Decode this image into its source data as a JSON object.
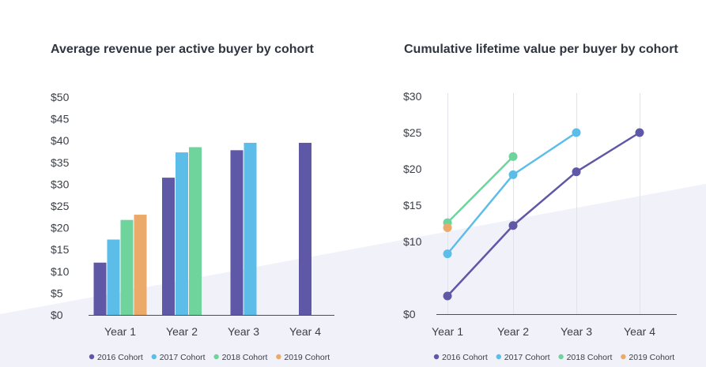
{
  "colors": {
    "2016 Cohort": "#5f58a6",
    "2017 Cohort": "#5cbde9",
    "2018 Cohort": "#6fd39c",
    "2019 Cohort": "#eba96a"
  },
  "chart_data": [
    {
      "type": "bar",
      "title": "Average revenue per active buyer by cohort",
      "xlabel": "",
      "ylabel": "",
      "categories": [
        "Year 1",
        "Year 2",
        "Year 3",
        "Year 4"
      ],
      "ylim": [
        0,
        50
      ],
      "yticks": [
        0,
        5,
        10,
        15,
        20,
        25,
        30,
        35,
        40,
        45,
        50
      ],
      "ytick_labels": [
        "$0",
        "$5",
        "$10",
        "$15",
        "$20",
        "$25",
        "$30",
        "$35",
        "$40",
        "$45",
        "$50"
      ],
      "grid": false,
      "legend": "bottom",
      "series": [
        {
          "name": "2016 Cohort",
          "values": [
            12,
            31.5,
            37.8,
            39.5
          ]
        },
        {
          "name": "2017 Cohort",
          "values": [
            17.3,
            37.3,
            39.5,
            null
          ]
        },
        {
          "name": "2018 Cohort",
          "values": [
            21.8,
            38.5,
            null,
            null
          ]
        },
        {
          "name": "2019 Cohort",
          "values": [
            23,
            null,
            null,
            null
          ]
        }
      ]
    },
    {
      "type": "line",
      "title": "Cumulative lifetime value per buyer by cohort",
      "xlabel": "",
      "ylabel": "",
      "categories": [
        "Year 1",
        "Year 2",
        "Year 3",
        "Year 4"
      ],
      "ylim": [
        0,
        30
      ],
      "yticks": [
        0,
        10,
        15,
        20,
        25,
        30
      ],
      "ytick_labels": [
        "$0",
        "$10",
        "$15",
        "$20",
        "$25",
        "$30"
      ],
      "grid": "vertical",
      "legend": "bottom",
      "series": [
        {
          "name": "2016 Cohort",
          "values": [
            2.5,
            12.2,
            19.6,
            25
          ]
        },
        {
          "name": "2017 Cohort",
          "values": [
            8.3,
            19.2,
            25,
            null
          ]
        },
        {
          "name": "2018 Cohort",
          "values": [
            12.6,
            21.7,
            null,
            null
          ]
        },
        {
          "name": "2019 Cohort",
          "values": [
            11.9,
            null,
            null,
            null
          ]
        }
      ]
    }
  ]
}
